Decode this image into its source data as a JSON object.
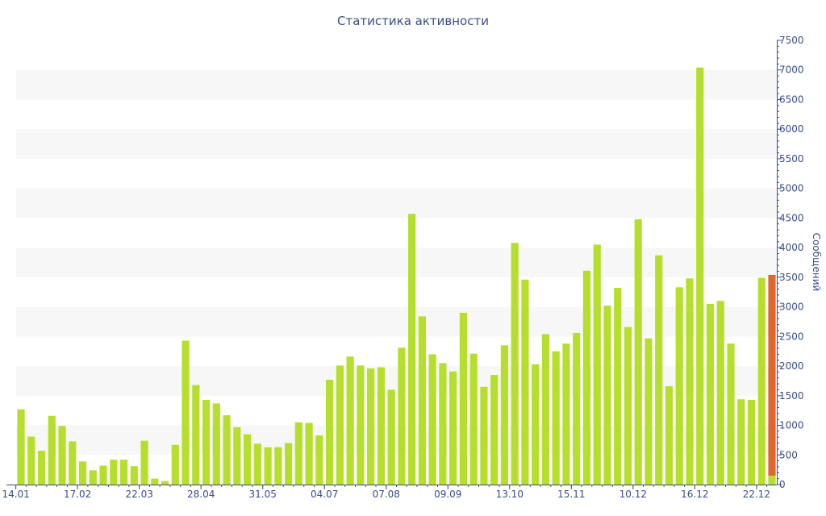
{
  "chart_data": {
    "type": "bar",
    "title": "Статистика активности",
    "xlabel": "",
    "ylabel": "Сообщений",
    "ylim": [
      0,
      7500
    ],
    "yticks": [
      0,
      500,
      1000,
      1500,
      2000,
      2500,
      3000,
      3500,
      4000,
      4500,
      5000,
      5500,
      6000,
      6500,
      7000,
      7500
    ],
    "grid": "alternating horizontal bands",
    "x_tick_labels": [
      {
        "label": "14.01",
        "index": 0
      },
      {
        "label": "17.02",
        "index": 6
      },
      {
        "label": "22.03",
        "index": 12
      },
      {
        "label": "28.04",
        "index": 18
      },
      {
        "label": "31.05",
        "index": 24
      },
      {
        "label": "04.07",
        "index": 30
      },
      {
        "label": "07.08",
        "index": 36
      },
      {
        "label": "09.09",
        "index": 42
      },
      {
        "label": "13.10",
        "index": 48
      },
      {
        "label": "15.11",
        "index": 54
      },
      {
        "label": "10.12",
        "index": 60
      },
      {
        "label": "16.12",
        "index": 66
      },
      {
        "label": "22.12",
        "index": 72
      }
    ],
    "values": [
      1270,
      810,
      570,
      1160,
      990,
      730,
      390,
      240,
      320,
      420,
      420,
      310,
      740,
      100,
      60,
      670,
      2430,
      1680,
      1430,
      1370,
      1170,
      970,
      850,
      690,
      630,
      630,
      700,
      1050,
      1040,
      830,
      1770,
      2010,
      2160,
      2010,
      1960,
      1980,
      1600,
      2310,
      4570,
      2840,
      2200,
      2050,
      1910,
      2900,
      2210,
      1650,
      1850,
      2350,
      4080,
      3460,
      2030,
      2540,
      2250,
      2380,
      2560,
      3610,
      4050,
      3020,
      3320,
      2660,
      4480,
      2470,
      3870,
      1660,
      3330,
      3480,
      7040,
      3050,
      3100,
      2380,
      1440,
      1430,
      3490,
      3540
    ],
    "last_bar": {
      "total": 3540,
      "highlight_base": 150
    },
    "colors": {
      "bar": "#b5df2c",
      "highlight": "#e0662e",
      "axis": "#3a4d86",
      "band": "#f7f7f7"
    }
  }
}
